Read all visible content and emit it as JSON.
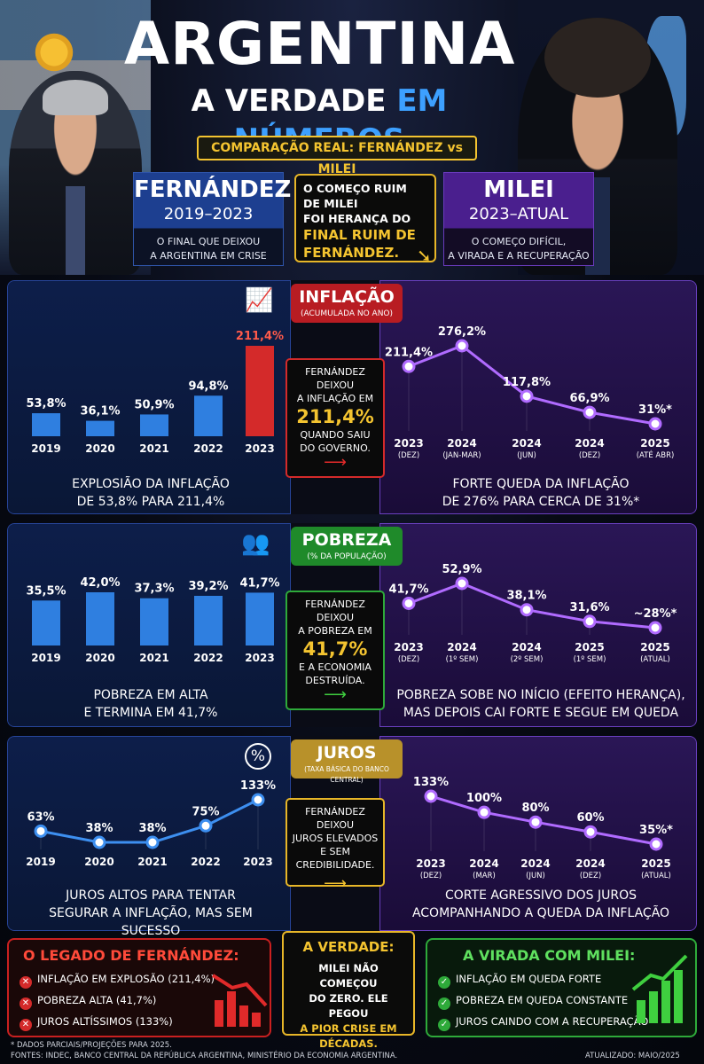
{
  "header": {
    "title": "ARGENTINA",
    "subtitle_part1": "A VERDADE",
    "subtitle_part2": "EM NÚMEROS",
    "comparison": "COMPARAÇÃO REAL: FERNÁNDEZ vs MILEI",
    "fernandez": {
      "name": "FERNÁNDEZ",
      "years": "2019–2023",
      "desc1": "O FINAL QUE DEIXOU",
      "desc2": "A ARGENTINA EM CRISE"
    },
    "milei": {
      "name": "MILEI",
      "years": "2023–ATUAL",
      "desc1": "O COMEÇO DIFÍCIL,",
      "desc2": "A VIRADA E A RECUPERAÇÃO"
    },
    "middle": {
      "l1": "O COMEÇO RUIM DE MILEI",
      "l2": "FOI HERANÇA DO",
      "l3": "FINAL RUIM DE",
      "l4": "FERNÁNDEZ."
    }
  },
  "inflation": {
    "title": "INFLAÇÃO",
    "sub": "(ACUMULADA NO ANO)",
    "left_caption1": "EXPLOSIÃO DA INFLAÇÃO",
    "left_caption2": "DE 53,8% PARA 211,4%",
    "right_caption1": "FORTE QUEDA DA INFLAÇÃO",
    "right_caption2": "DE 276% PARA CERCA DE 31%*",
    "callout": {
      "l1": "FERNÁNDEZ DEIXOU",
      "l2": "A INFLAÇÃO EM",
      "big": "211,4%",
      "l3": "QUANDO SAIU",
      "l4": "DO GOVERNO."
    }
  },
  "poverty": {
    "title": "POBREZA",
    "sub": "(% DA POPULAÇÃO)",
    "left_caption1": "POBREZA EM ALTA",
    "left_caption2": "E TERMINA EM 41,7%",
    "right_caption1": "POBREZA SOBE NO INÍCIO (EFEITO HERANÇA),",
    "right_caption2": "MAS DEPOIS CAI FORTE E SEGUE EM QUEDA",
    "callout": {
      "l1": "FERNÁNDEZ DEIXOU",
      "l2": "A POBREZA EM",
      "big": "41,7%",
      "l3": "E A ECONOMIA",
      "l4": "DESTRUÍDA."
    }
  },
  "rates": {
    "title": "JUROS",
    "sub": "(TAXA BÁSICA DO BANCO CENTRAL)",
    "left_caption1": "JUROS ALTOS PARA TENTAR",
    "left_caption2": "SEGURAR A INFLAÇÃO, MAS SEM SUCESSO",
    "right_caption1": "CORTE AGRESSIVO DOS JUROS",
    "right_caption2": "ACOMPANHANDO A QUEDA DA INFLAÇÃO",
    "callout": {
      "l1": "FERNÁNDEZ DEIXOU",
      "l2": "JUROS ELEVADOS",
      "l3": "E SEM CREDIBILIDADE."
    }
  },
  "chart_data": [
    {
      "type": "bar",
      "name": "inflation-fernandez",
      "categories": [
        "2019",
        "2020",
        "2021",
        "2022",
        "2023"
      ],
      "values": [
        53.8,
        36.1,
        50.9,
        94.8,
        211.4
      ],
      "labels": [
        "53,8%",
        "36,1%",
        "50,9%",
        "94,8%",
        "211,4%"
      ],
      "colors": [
        "#2f7fe0",
        "#2f7fe0",
        "#2f7fe0",
        "#2f7fe0",
        "#d42a2a"
      ]
    },
    {
      "type": "line",
      "name": "inflation-milei",
      "categories": [
        "2023",
        "2024",
        "2024",
        "2024",
        "2025"
      ],
      "sublabels": [
        "(DEZ)",
        "(JAN-MAR)",
        "(JUN)",
        "(DEZ)",
        "(ATÉ ABR)"
      ],
      "values": [
        211.4,
        276.2,
        117.8,
        66.9,
        31
      ],
      "labels": [
        "211,4%",
        "276,2%",
        "117,8%",
        "66,9%",
        "31%*"
      ],
      "color": "#b06bff"
    },
    {
      "type": "bar",
      "name": "poverty-fernandez",
      "categories": [
        "2019",
        "2020",
        "2021",
        "2022",
        "2023"
      ],
      "values": [
        35.5,
        42.0,
        37.3,
        39.2,
        41.7
      ],
      "labels": [
        "35,5%",
        "42,0%",
        "37,3%",
        "39,2%",
        "41,7%"
      ],
      "color": "#2f7fe0"
    },
    {
      "type": "line",
      "name": "poverty-milei",
      "categories": [
        "2023",
        "2024",
        "2024",
        "2025",
        "2025"
      ],
      "sublabels": [
        "(DEZ)",
        "(1º SEM)",
        "(2º SEM)",
        "(1º SEM)",
        "(ATUAL)"
      ],
      "values": [
        41.7,
        52.9,
        38.1,
        31.6,
        28
      ],
      "labels": [
        "41,7%",
        "52,9%",
        "38,1%",
        "31,6%",
        "~28%*"
      ],
      "color": "#b06bff"
    },
    {
      "type": "line",
      "name": "rates-fernandez",
      "categories": [
        "2019",
        "2020",
        "2021",
        "2022",
        "2023"
      ],
      "values": [
        63,
        38,
        38,
        75,
        133
      ],
      "labels": [
        "63%",
        "38%",
        "38%",
        "75%",
        "133%"
      ],
      "color": "#3d8ff0"
    },
    {
      "type": "line",
      "name": "rates-milei",
      "categories": [
        "2023",
        "2024",
        "2024",
        "2024",
        "2025"
      ],
      "sublabels": [
        "(DEZ)",
        "(MAR)",
        "(JUN)",
        "(DEZ)",
        "(ATUAL)"
      ],
      "values": [
        133,
        100,
        80,
        60,
        35
      ],
      "labels": [
        "133%",
        "100%",
        "80%",
        "60%",
        "35%*"
      ],
      "color": "#b06bff"
    }
  ],
  "bottom": {
    "legacy_title": "O LEGADO DE FERNÁNDEZ:",
    "legacy_items": [
      "INFLAÇÃO EM EXPLOSÃO (211,4%)",
      "POBREZA ALTA (41,7%)",
      "JUROS ALTÍSSIMOS (133%)"
    ],
    "truth_title": "A VERDADE:",
    "truth_l1": "MILEI NÃO COMEÇOU",
    "truth_l2": "DO ZERO. ELE PEGOU",
    "truth_l3": "A PIOR CRISE EM",
    "truth_l4": "DÉCADAS.",
    "turn_title": "A VIRADA COM MILEI:",
    "turn_items": [
      "INFLAÇÃO EM QUEDA FORTE",
      "POBREZA EM QUEDA CONSTANTE",
      "JUROS CAINDO COM A RECUPERAÇÃO"
    ]
  },
  "footer": {
    "note": "* DADOS PARCIAIS/PROJEÇÕES PARA 2025.",
    "sources": "FONTES: INDEC, BANCO CENTRAL DA REPÚBLICA ARGENTINA, MINISTÉRIO DA ECONOMIA ARGENTINA.",
    "updated": "ATUALIZADO: MAIO/2025"
  },
  "colors": {
    "blue": "#2f7fe0",
    "red": "#d42a2a",
    "purple": "#b06bff",
    "gold": "#f4c430",
    "green": "#2eaa3a"
  }
}
